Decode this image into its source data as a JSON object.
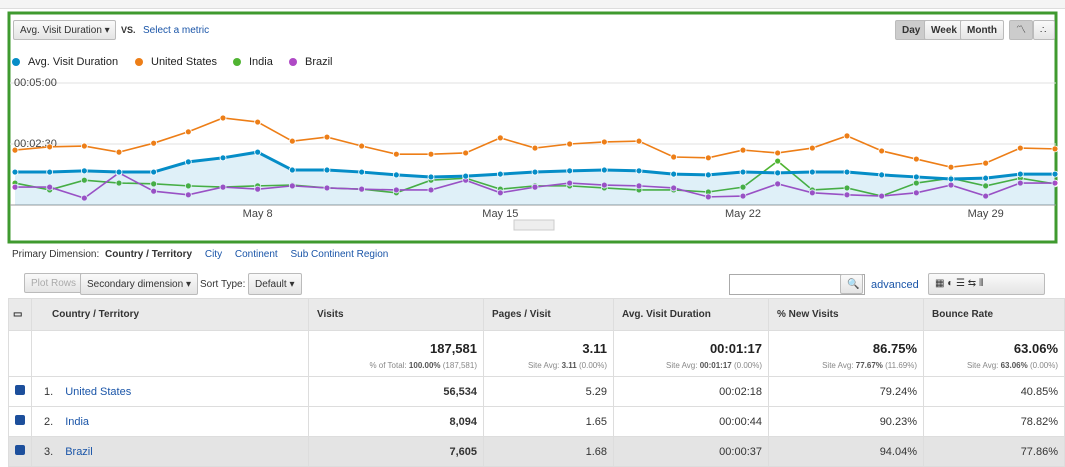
{
  "toolbar": {
    "metric": "Avg. Visit Duration",
    "vs": "VS.",
    "select": "Select a metric",
    "periods": [
      "Day",
      "Week",
      "Month"
    ]
  },
  "chart_data": {
    "type": "line",
    "categories": [
      null,
      null,
      null,
      null,
      null,
      null,
      null,
      "May 8",
      null,
      null,
      null,
      null,
      null,
      null,
      "May 15",
      null,
      null,
      null,
      null,
      null,
      null,
      "May 22",
      null,
      null,
      null,
      null,
      null,
      null,
      "May 29",
      null,
      null
    ],
    "ylim": [
      0,
      300
    ],
    "yticks": [
      {
        "value": 150,
        "label": "00:02:30"
      },
      {
        "value": 300,
        "label": "00:05:00"
      }
    ],
    "grid": true,
    "series": [
      {
        "name": "Avg. Visit Duration",
        "color": "#058dc7",
        "area": true,
        "values": [
          81,
          81,
          84,
          81,
          81,
          106,
          116,
          130,
          86,
          86,
          81,
          74,
          69,
          71,
          76,
          81,
          84,
          86,
          84,
          76,
          74,
          81,
          79,
          81,
          81,
          74,
          69,
          64,
          66,
          76,
          76
        ]
      },
      {
        "name": "United States",
        "color": "#ed7e17",
        "values": [
          135,
          143,
          145,
          130,
          152,
          180,
          214,
          204,
          157,
          167,
          145,
          125,
          125,
          128,
          165,
          140,
          150,
          155,
          157,
          118,
          116,
          135,
          128,
          140,
          170,
          133,
          113,
          93,
          103,
          140,
          138
        ]
      },
      {
        "name": "India",
        "color": "#50b432",
        "values": [
          54,
          37,
          61,
          54,
          52,
          47,
          44,
          47,
          49,
          42,
          39,
          30,
          61,
          66,
          39,
          47,
          47,
          42,
          37,
          37,
          32,
          44,
          108,
          37,
          42,
          22,
          54,
          66,
          47,
          66,
          52
        ]
      },
      {
        "name": "Brazil",
        "color": "#af49c5",
        "values": [
          44,
          44,
          17,
          79,
          34,
          25,
          44,
          39,
          47,
          42,
          39,
          37,
          37,
          61,
          30,
          44,
          54,
          49,
          47,
          42,
          20,
          22,
          52,
          30,
          25,
          22,
          30,
          49,
          22,
          54,
          54
        ]
      }
    ]
  },
  "dimension": {
    "label": "Primary Dimension:",
    "current": "Country / Territory",
    "others": [
      "City",
      "Continent",
      "Sub Continent Region"
    ]
  },
  "controls": {
    "plot": "Plot Rows",
    "secondary": "Secondary dimension",
    "sort_label": "Sort Type:",
    "sort": "Default",
    "advanced": "advanced"
  },
  "table": {
    "columns": [
      "Country / Territory",
      "Visits",
      "Pages / Visit",
      "Avg. Visit Duration",
      "% New Visits",
      "Bounce Rate"
    ],
    "totals": [
      {
        "value": "187,581",
        "caption": "% of Total:",
        "caption_value": "100.00%",
        "caption_extra": "(187,581)"
      },
      {
        "value": "3.11",
        "caption": "Site Avg:",
        "caption_value": "3.11",
        "caption_extra": "(0.00%)"
      },
      {
        "value": "00:01:17",
        "caption": "Site Avg:",
        "caption_value": "00:01:17",
        "caption_extra": "(0.00%)"
      },
      {
        "value": "86.75%",
        "caption": "Site Avg:",
        "caption_value": "77.67%",
        "caption_extra": "(11.69%)"
      },
      {
        "value": "63.06%",
        "caption": "Site Avg:",
        "caption_value": "63.06%",
        "caption_extra": "(0.00%)"
      }
    ],
    "rows": [
      [
        "1.",
        "United States",
        "56,534",
        "5.29",
        "00:02:18",
        "79.24%",
        "40.85%"
      ],
      [
        "2.",
        "India",
        "8,094",
        "1.65",
        "00:00:44",
        "90.23%",
        "78.82%"
      ],
      [
        "3.",
        "Brazil",
        "7,605",
        "1.68",
        "00:00:37",
        "94.04%",
        "77.86%"
      ]
    ]
  }
}
